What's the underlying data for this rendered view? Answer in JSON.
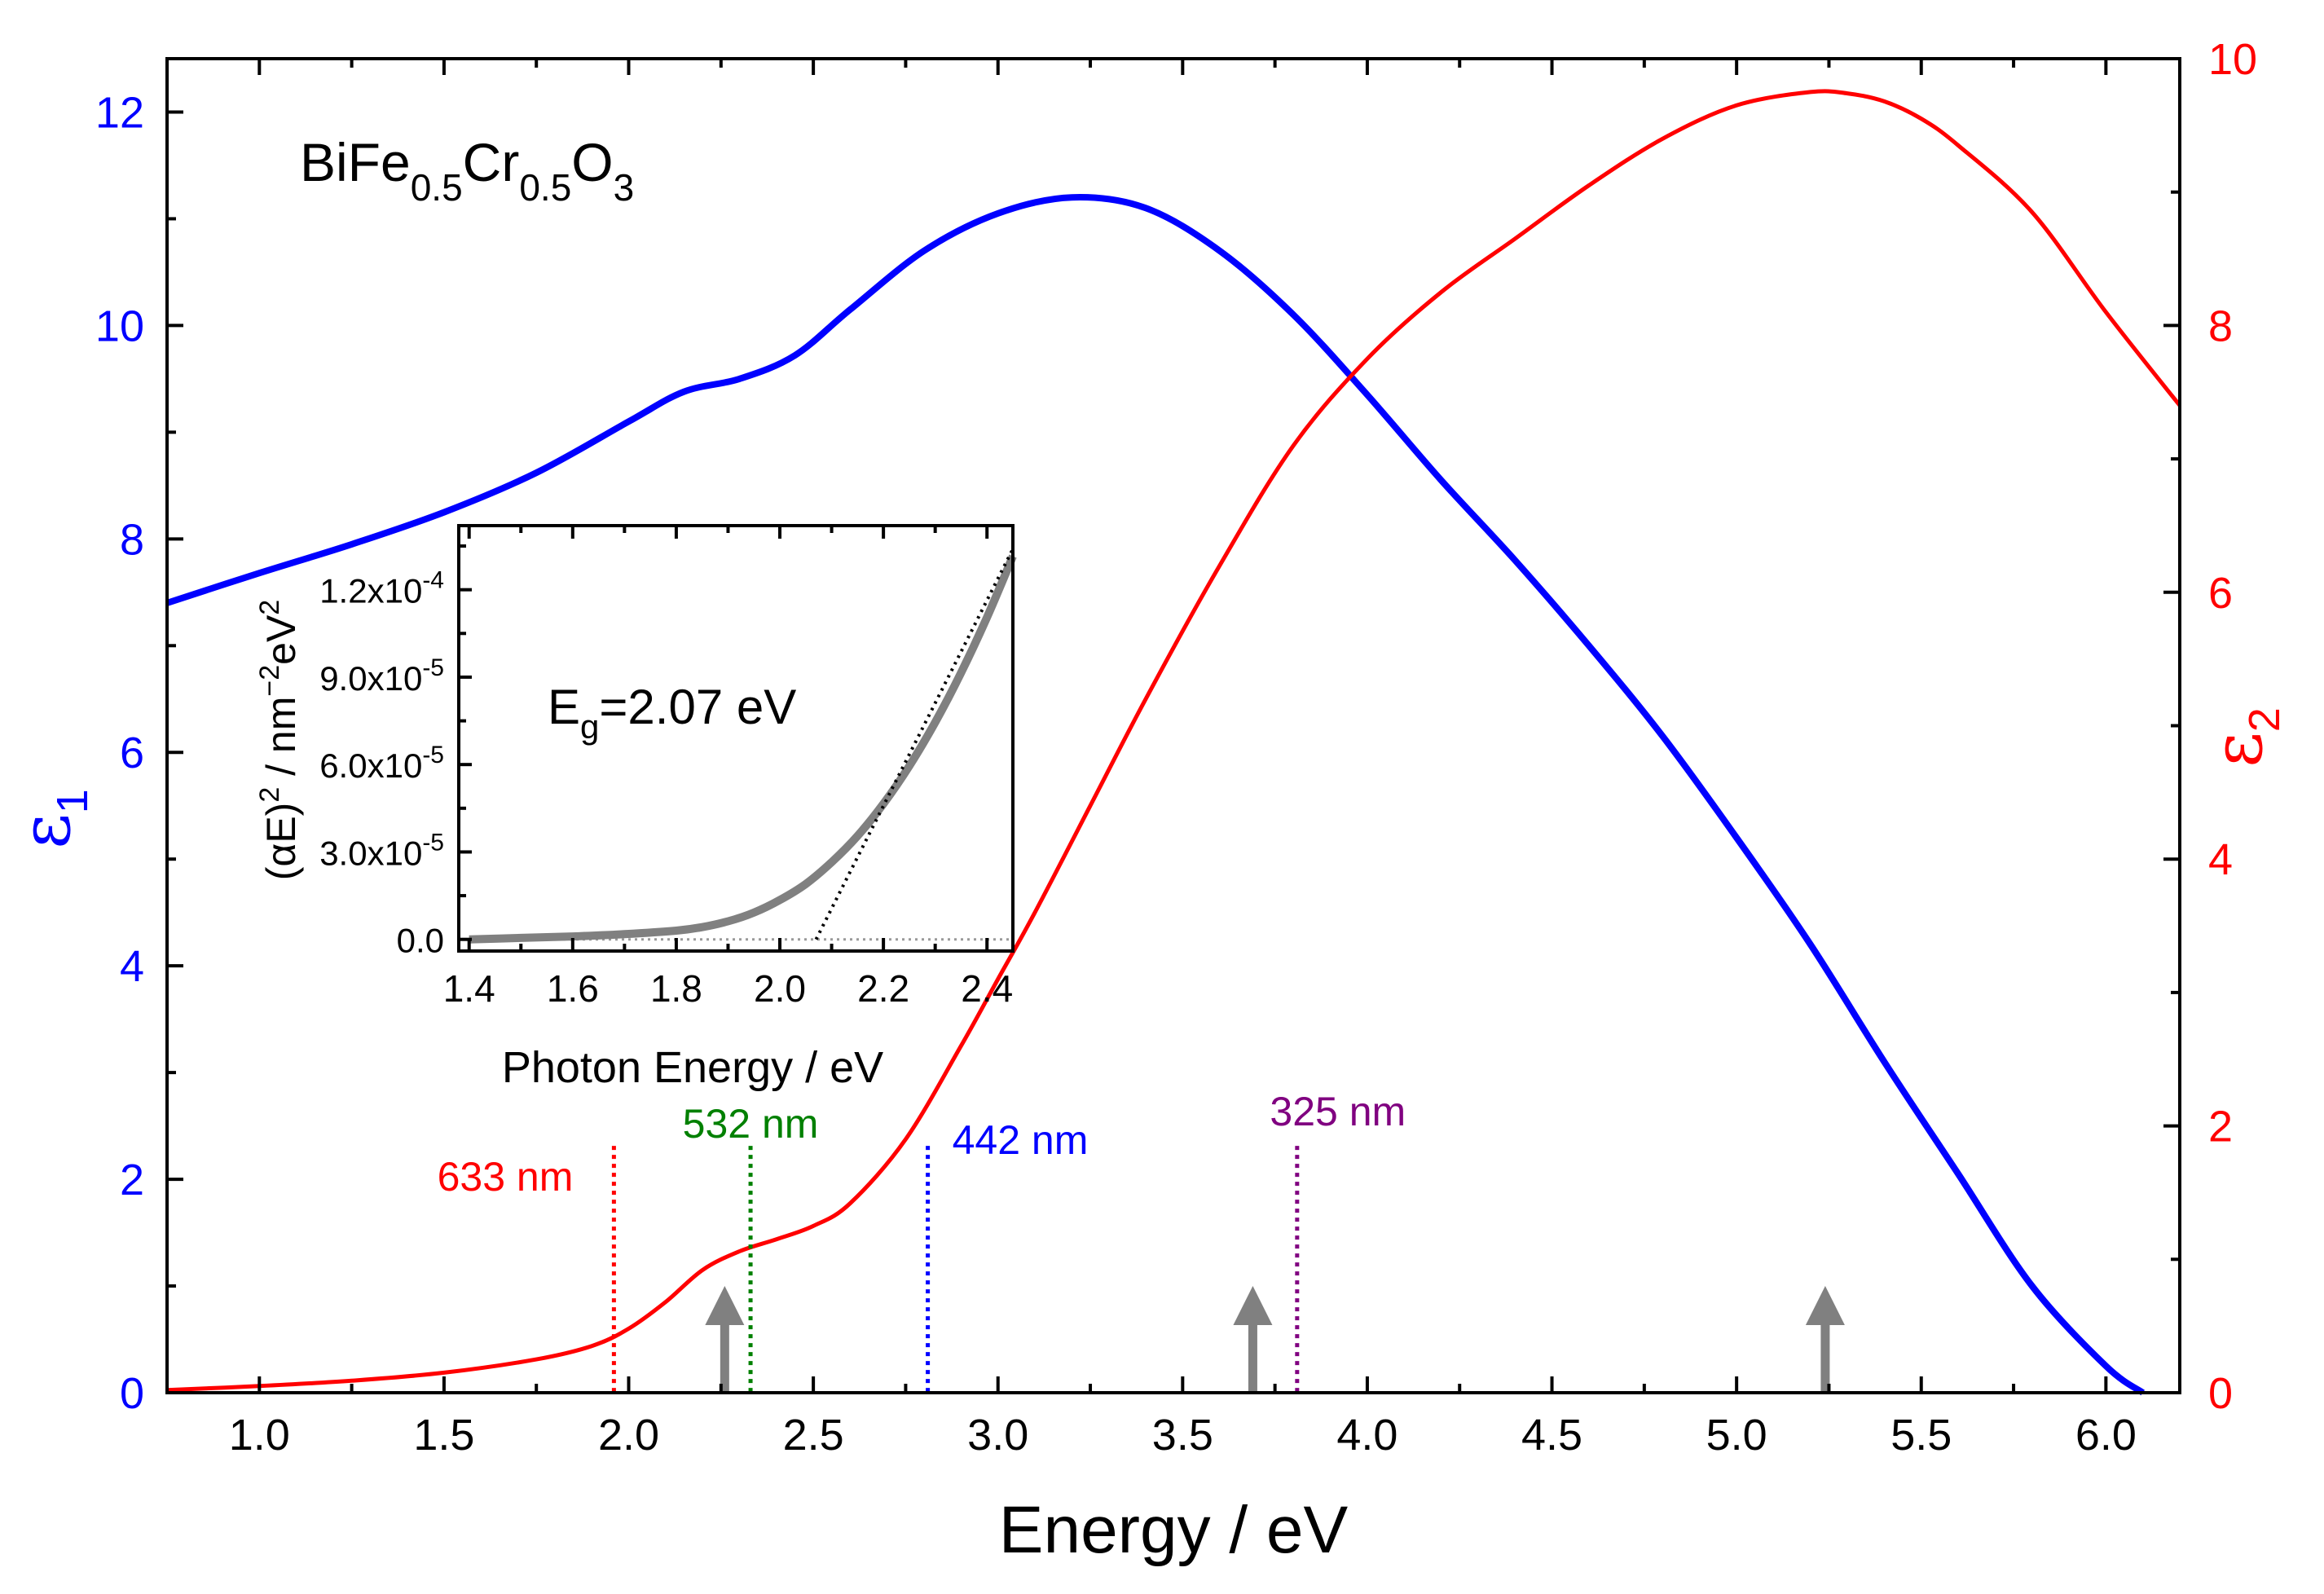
{
  "colors": {
    "eps1": "#0000ff",
    "eps2": "#ff0000",
    "inset_data": "#808080",
    "inset_fit": "#000000",
    "arrow": "#808080",
    "axis": "#000000",
    "line_633": "#ff0000",
    "line_532": "#008000",
    "line_442": "#0000ff",
    "line_325": "#800080"
  },
  "chart_data": {
    "type": "line",
    "title": "",
    "xlabel": "Energy / eV",
    "xlim": [
      0.75,
      6.2
    ],
    "x_ticks": [
      "1.0",
      "1.5",
      "2.0",
      "2.5",
      "3.0",
      "3.5",
      "4.0",
      "4.5",
      "5.0",
      "5.5",
      "6.0"
    ],
    "y_left": {
      "label": "ε",
      "label_sub": "1",
      "lim": [
        0,
        12.5
      ],
      "ticks": [
        "0",
        "2",
        "4",
        "6",
        "8",
        "10",
        "12"
      ]
    },
    "y_right": {
      "label": "ε",
      "label_sub": "2",
      "lim": [
        0,
        10
      ],
      "ticks": [
        "0",
        "2",
        "4",
        "6",
        "8",
        "10"
      ]
    },
    "sample": {
      "base": "BiFe",
      "sub1": "0.5",
      "mid": "Cr",
      "sub2": "0.5",
      "end": "O",
      "sub3": "3"
    },
    "series": [
      {
        "name": "ε1",
        "axis": "left",
        "x": [
          0.75,
          1.0,
          1.25,
          1.5,
          1.75,
          2.0,
          2.15,
          2.3,
          2.45,
          2.6,
          2.8,
          3.0,
          3.2,
          3.4,
          3.6,
          3.8,
          4.0,
          4.2,
          4.4,
          4.6,
          4.8,
          5.0,
          5.2,
          5.4,
          5.6,
          5.8,
          6.0,
          6.1
        ],
        "y": [
          7.4,
          7.68,
          7.95,
          8.25,
          8.62,
          9.1,
          9.38,
          9.5,
          9.72,
          10.15,
          10.7,
          11.05,
          11.2,
          11.1,
          10.7,
          10.1,
          9.35,
          8.55,
          7.8,
          7.0,
          6.15,
          5.2,
          4.2,
          3.1,
          2.05,
          1.0,
          0.25,
          0.0
        ]
      },
      {
        "name": "ε2",
        "axis": "right",
        "x": [
          0.75,
          1.0,
          1.25,
          1.5,
          1.75,
          1.9,
          2.0,
          2.1,
          2.2,
          2.3,
          2.4,
          2.5,
          2.6,
          2.75,
          2.9,
          3.0,
          3.1,
          3.25,
          3.4,
          3.6,
          3.8,
          4.0,
          4.2,
          4.4,
          4.6,
          4.8,
          5.0,
          5.2,
          5.3,
          5.4,
          5.5,
          5.6,
          5.8,
          6.0,
          6.2
        ],
        "y": [
          0.02,
          0.05,
          0.09,
          0.15,
          0.25,
          0.35,
          0.48,
          0.68,
          0.92,
          1.06,
          1.15,
          1.25,
          1.42,
          1.9,
          2.6,
          3.1,
          3.6,
          4.4,
          5.2,
          6.2,
          7.1,
          7.75,
          8.25,
          8.65,
          9.05,
          9.4,
          9.65,
          9.75,
          9.74,
          9.68,
          9.55,
          9.35,
          8.85,
          8.1,
          7.4
        ]
      }
    ],
    "laser_lines": [
      {
        "label": "633 nm",
        "energy": 1.96,
        "top": 1.85
      },
      {
        "label": "532 nm",
        "energy": 2.33,
        "top": 1.85
      },
      {
        "label": "442 nm",
        "energy": 2.81,
        "top": 1.85
      },
      {
        "label": "325 nm",
        "energy": 3.81,
        "top": 1.85
      }
    ],
    "arrows": [
      {
        "energy": 2.26,
        "top": 0.8
      },
      {
        "energy": 3.69,
        "top": 0.8
      },
      {
        "energy": 5.24,
        "top": 0.8
      }
    ],
    "inset": {
      "type": "line",
      "xlabel": "Photon Energy / eV",
      "ylabel": "(αE)² / nm⁻²eV²",
      "ylabel_parts": {
        "a": "(αE)",
        "sup1": "2",
        "b": " / nm",
        "sup2": "−2",
        "c": "eV",
        "sup3": "2"
      },
      "xlim": [
        1.38,
        2.45
      ],
      "ylim": [
        -4e-06,
        0.000142
      ],
      "x_ticks": [
        "1.4",
        "1.6",
        "1.8",
        "2.0",
        "2.2",
        "2.4"
      ],
      "y_ticks": [
        {
          "mant": "0.0",
          "exp": ""
        },
        {
          "mant": "3.0x10",
          "exp": "-5"
        },
        {
          "mant": "6.0x10",
          "exp": "-5"
        },
        {
          "mant": "9.0x10",
          "exp": "-5"
        },
        {
          "mant": "1.2x10",
          "exp": "-4"
        }
      ],
      "annotation": {
        "base": "E",
        "sub": "g",
        "rest": "=2.07 eV"
      },
      "band_gap_eV": 2.07,
      "data": {
        "x": [
          1.4,
          1.5,
          1.6,
          1.7,
          1.8,
          1.85,
          1.9,
          1.95,
          2.0,
          2.05,
          2.1,
          2.15,
          2.2,
          2.25,
          2.3,
          2.35,
          2.4,
          2.45
        ],
        "y": [
          0.0,
          5e-07,
          1e-06,
          1.8e-06,
          3e-06,
          4.2e-06,
          6.2e-06,
          9.2e-06,
          1.35e-05,
          1.9e-05,
          2.65e-05,
          3.55e-05,
          4.65e-05,
          5.95e-05,
          7.45e-05,
          9.15e-05,
          0.0001105,
          0.0001315
        ]
      },
      "fit": {
        "x": [
          2.07,
          2.45
        ],
        "y": [
          0.0,
          0.000134
        ]
      }
    }
  }
}
